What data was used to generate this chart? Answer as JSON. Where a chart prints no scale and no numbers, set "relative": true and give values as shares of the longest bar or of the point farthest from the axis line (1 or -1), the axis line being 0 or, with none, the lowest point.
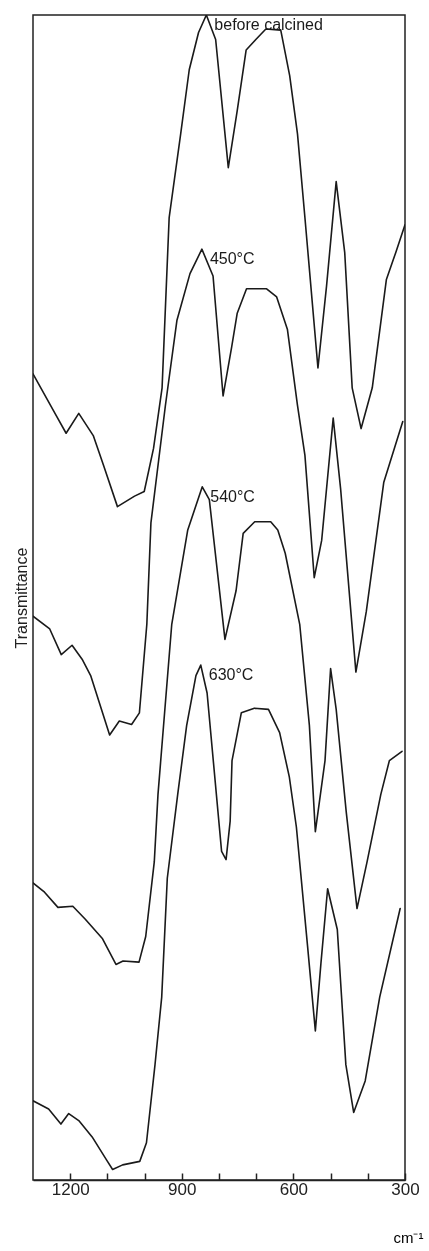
{
  "chart_data": {
    "type": "line",
    "xlabel": "cm⁻¹",
    "ylabel": "Transmittance",
    "xlim": [
      1300,
      300
    ],
    "relative": true,
    "xticks": [
      1200,
      {
        "value": 1100,
        "label": null
      },
      {
        "value": 1000,
        "label": null
      },
      900,
      {
        "value": 800,
        "label": null
      },
      {
        "value": 700,
        "label": null
      },
      600,
      {
        "value": 500,
        "label": null
      },
      {
        "value": 400,
        "label": null
      },
      300
    ],
    "series": [
      {
        "name": "before calcined",
        "color": "#1a1a1a",
        "x": [
          1300,
          1239,
          1211,
          1177,
          1138,
          1110,
          1073,
          1027,
          1001,
          976,
          953,
          934,
          903,
          880,
          855,
          834,
          809,
          775,
          751,
          727,
          701,
          674,
          634,
          610,
          589,
          569,
          534,
          511,
          485,
          462,
          442,
          418,
          388,
          350,
          325,
          300
        ],
        "values": [
          0.692,
          0.657,
          0.641,
          0.658,
          0.639,
          0.613,
          0.578,
          0.587,
          0.591,
          0.628,
          0.68,
          0.826,
          0.898,
          0.953,
          0.985,
          1,
          0.979,
          0.869,
          0.918,
          0.97,
          0.979,
          0.988,
          0.987,
          0.948,
          0.898,
          0.826,
          0.697,
          0.767,
          0.857,
          0.796,
          0.68,
          0.645,
          0.68,
          0.773,
          0.796,
          0.82
        ]
      },
      {
        "name": "450°C",
        "color": "#1a1a1a",
        "x": [
          1300,
          1255,
          1224,
          1195,
          1168,
          1145,
          1094,
          1068,
          1035,
          1014,
          994,
          983,
          944,
          913,
          878,
          846,
          816,
          789,
          766,
          751,
          726,
          672,
          645,
          616,
          589,
          569,
          544,
          524,
          493,
          473,
          432,
          404,
          357,
          306
        ],
        "values": [
          0.484,
          0.473,
          0.451,
          0.459,
          0.447,
          0.433,
          0.382,
          0.394,
          0.391,
          0.401,
          0.477,
          0.564,
          0.665,
          0.738,
          0.778,
          0.799,
          0.776,
          0.673,
          0.715,
          0.744,
          0.765,
          0.765,
          0.758,
          0.73,
          0.665,
          0.622,
          0.517,
          0.549,
          0.654,
          0.593,
          0.436,
          0.488,
          0.599,
          0.651
        ]
      },
      {
        "name": "540°C",
        "color": "#1a1a1a",
        "x": [
          1300,
          1269,
          1233,
          1193,
          1160,
          1113,
          1077,
          1058,
          1015,
          997,
          974,
          964,
          927,
          884,
          845,
          826,
          784,
          754,
          735,
          704,
          661,
          642,
          622,
          583,
          557,
          541,
          515,
          500,
          485,
          458,
          429,
          402,
          365,
          342,
          308
        ],
        "values": [
          0.255,
          0.247,
          0.234,
          0.235,
          0.224,
          0.207,
          0.185,
          0.188,
          0.187,
          0.209,
          0.273,
          0.331,
          0.477,
          0.558,
          0.595,
          0.584,
          0.464,
          0.506,
          0.555,
          0.565,
          0.565,
          0.558,
          0.538,
          0.477,
          0.39,
          0.299,
          0.36,
          0.439,
          0.404,
          0.316,
          0.233,
          0.273,
          0.331,
          0.36,
          0.368
        ]
      },
      {
        "name": "630°C",
        "color": "#1a1a1a",
        "x": [
          1300,
          1258,
          1225,
          1204,
          1177,
          1141,
          1102,
          1086,
          1059,
          1013,
          995,
          972,
          954,
          939,
          911,
          887,
          862,
          849,
          832,
          793,
          781,
          770,
          765,
          740,
          705,
          667,
          637,
          611,
          592,
          562,
          541,
          526,
          508,
          482,
          459,
          438,
          407,
          368,
          313
        ],
        "values": [
          0.068,
          0.061,
          0.048,
          0.057,
          0.051,
          0.037,
          0.017,
          0.009,
          0.013,
          0.016,
          0.032,
          0.099,
          0.157,
          0.259,
          0.331,
          0.39,
          0.433,
          0.442,
          0.418,
          0.282,
          0.275,
          0.308,
          0.36,
          0.401,
          0.405,
          0.404,
          0.384,
          0.346,
          0.303,
          0.201,
          0.128,
          0.186,
          0.25,
          0.215,
          0.099,
          0.058,
          0.085,
          0.157,
          0.233
        ]
      }
    ]
  }
}
